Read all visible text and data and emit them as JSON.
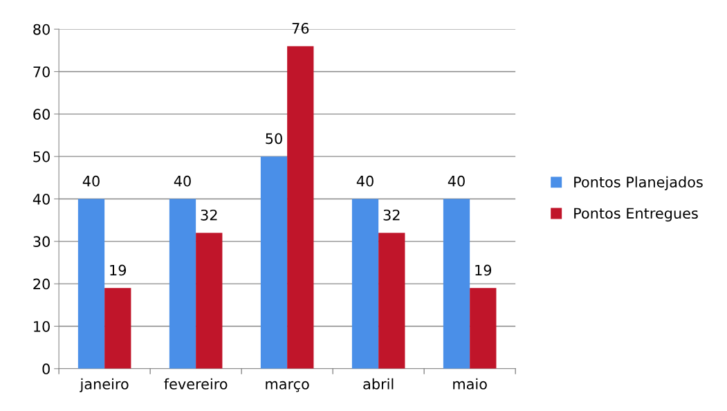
{
  "chart_data": {
    "type": "bar",
    "categories": [
      "janeiro",
      "fevereiro",
      "março",
      "abril",
      "maio"
    ],
    "series": [
      {
        "name": "Pontos Planejados",
        "color": "#4a8fe8",
        "values": [
          40,
          40,
          50,
          40,
          40
        ]
      },
      {
        "name": "Pontos Entregues",
        "color": "#c0152a",
        "values": [
          19,
          32,
          76,
          32,
          19
        ]
      }
    ],
    "ylim": [
      0,
      80
    ],
    "yticks": [
      0,
      10,
      20,
      30,
      40,
      50,
      60,
      70,
      80
    ],
    "grid": "y",
    "legend": "right",
    "data_labels": true
  }
}
